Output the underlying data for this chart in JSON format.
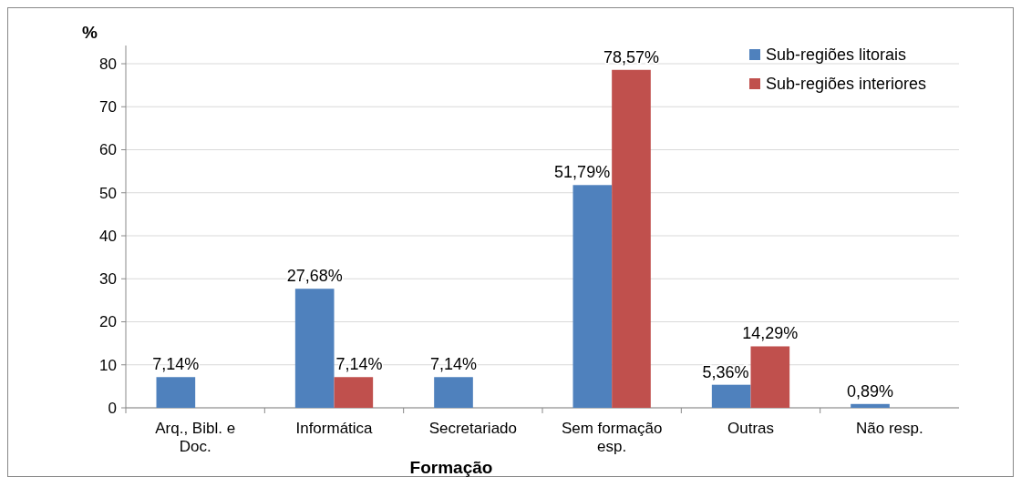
{
  "chart_data": {
    "type": "bar",
    "xlabel": "Formação",
    "ylabel": "%",
    "categories": [
      "Arq., Bibl. e Doc.",
      "Informática",
      "Secretariado",
      "Sem formação esp.",
      "Outras",
      "Não resp."
    ],
    "series": [
      {
        "name": "Sub-regiões litorais",
        "color": "#4f81bd",
        "values": [
          7.14,
          27.68,
          7.14,
          51.79,
          5.36,
          0.89
        ],
        "value_labels": [
          "7,14%",
          "27,68%",
          "7,14%",
          "51,79%",
          "5,36%",
          "0,89%"
        ]
      },
      {
        "name": "Sub-regiões interiores",
        "color": "#c0504d",
        "values": [
          null,
          7.14,
          null,
          78.57,
          14.29,
          null
        ],
        "value_labels": [
          null,
          "7,14%",
          null,
          "78,57%",
          "14,29%",
          null
        ]
      }
    ],
    "ylim": [
      0,
      80
    ],
    "yticks": [
      0,
      10,
      20,
      30,
      40,
      50,
      60,
      70,
      80
    ],
    "grid": "y",
    "legend": "top right"
  }
}
